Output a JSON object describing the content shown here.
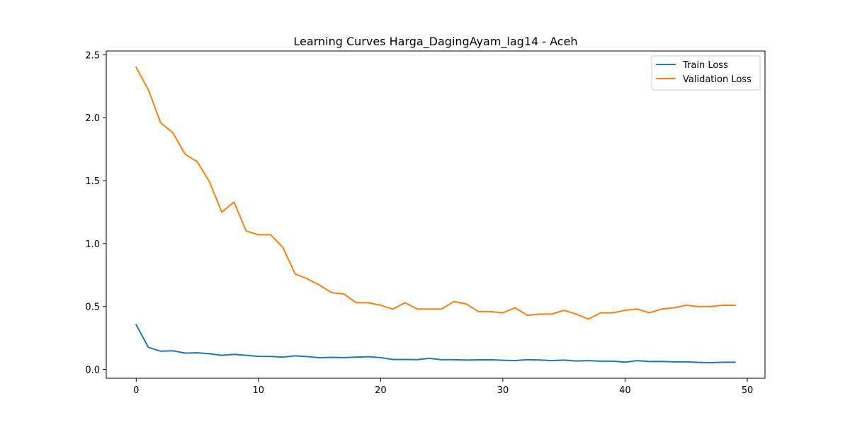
{
  "chart_data": {
    "type": "line",
    "title": "Learning Curves Harga_DagingAyam_lag14 - Aceh",
    "xlabel": "",
    "ylabel": "",
    "xlim": [
      -2.45,
      51.45
    ],
    "ylim": [
      -0.07,
      2.53
    ],
    "xticks": [
      0,
      10,
      20,
      30,
      40,
      50
    ],
    "yticks": [
      0.0,
      0.5,
      1.0,
      1.5,
      2.0,
      2.5
    ],
    "ytick_labels": [
      "0.0",
      "0.5",
      "1.0",
      "1.5",
      "2.0",
      "2.5"
    ],
    "grid": false,
    "legend_position": "top-right",
    "x": [
      0,
      1,
      2,
      3,
      4,
      5,
      6,
      7,
      8,
      9,
      10,
      11,
      12,
      13,
      14,
      15,
      16,
      17,
      18,
      19,
      20,
      21,
      22,
      23,
      24,
      25,
      26,
      27,
      28,
      29,
      30,
      31,
      32,
      33,
      34,
      35,
      36,
      37,
      38,
      39,
      40,
      41,
      42,
      43,
      44,
      45,
      46,
      47,
      48,
      49
    ],
    "series": [
      {
        "name": "Train Loss",
        "color": "#1f77b4",
        "values": [
          0.355,
          0.175,
          0.145,
          0.148,
          0.13,
          0.132,
          0.125,
          0.112,
          0.12,
          0.112,
          0.104,
          0.103,
          0.098,
          0.108,
          0.102,
          0.093,
          0.096,
          0.094,
          0.098,
          0.101,
          0.094,
          0.079,
          0.079,
          0.078,
          0.088,
          0.077,
          0.078,
          0.074,
          0.076,
          0.077,
          0.073,
          0.07,
          0.078,
          0.075,
          0.07,
          0.074,
          0.067,
          0.07,
          0.066,
          0.066,
          0.058,
          0.07,
          0.063,
          0.064,
          0.06,
          0.06,
          0.056,
          0.054,
          0.057,
          0.057
        ]
      },
      {
        "name": "Validation Loss",
        "color": "#ff7f0e",
        "values": [
          2.4,
          2.22,
          1.96,
          1.88,
          1.71,
          1.65,
          1.49,
          1.25,
          1.33,
          1.1,
          1.07,
          1.07,
          0.97,
          0.76,
          0.72,
          0.67,
          0.61,
          0.6,
          0.53,
          0.53,
          0.51,
          0.48,
          0.53,
          0.48,
          0.48,
          0.48,
          0.54,
          0.52,
          0.46,
          0.46,
          0.45,
          0.49,
          0.43,
          0.44,
          0.44,
          0.47,
          0.44,
          0.4,
          0.45,
          0.45,
          0.47,
          0.48,
          0.45,
          0.48,
          0.49,
          0.51,
          0.5,
          0.5,
          0.51,
          0.51
        ]
      }
    ]
  }
}
